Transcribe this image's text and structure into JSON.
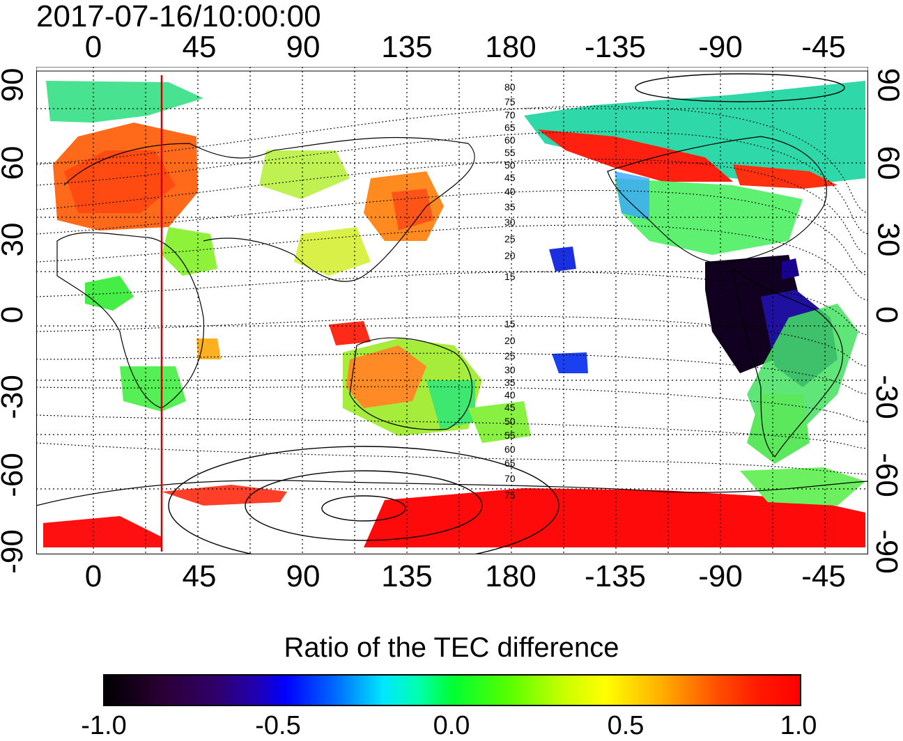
{
  "timestamp": "2017-07-16/10:00:00",
  "map": {
    "lon_ticks": [
      "0",
      "45",
      "90",
      "135",
      "180",
      "-135",
      "-90",
      "-45"
    ],
    "lat_ticks": [
      "90",
      "60",
      "30",
      "0",
      "-30",
      "-60",
      "-90"
    ],
    "maglat_north_labels": [
      "80",
      "75",
      "70",
      "65",
      "60",
      "55",
      "50",
      "45",
      "40",
      "35",
      "30",
      "25",
      "20",
      "15"
    ],
    "maglat_south_labels": [
      "15",
      "20",
      "25",
      "30",
      "35",
      "40",
      "45",
      "50",
      "55",
      "60",
      "65",
      "70",
      "75"
    ],
    "colors": {
      "red_line": "#cc0000",
      "coast": "#000000"
    }
  },
  "colorbar": {
    "title": "Ratio of the TEC difference",
    "ticks": [
      "-1.0",
      "-0.5",
      "0.0",
      "0.5",
      "1.0"
    ],
    "range": [
      -1.0,
      1.0
    ]
  }
}
